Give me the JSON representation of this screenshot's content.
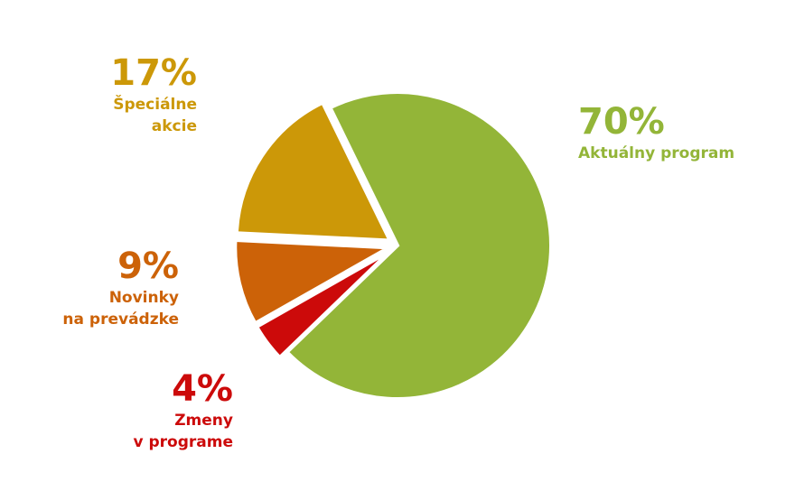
{
  "chart_data": {
    "type": "pie",
    "categories": [
      "Aktuálny program",
      "Zmeny\nv programe",
      "Novinky\nna prevádzke",
      "Špeciálne\nakcie"
    ],
    "values": [
      70,
      4,
      9,
      17
    ],
    "value_labels": [
      "70%",
      "4%",
      "9%",
      "17%"
    ],
    "colors": [
      "#93b538",
      "#cc0a0a",
      "#cc6208",
      "#cc9808"
    ]
  }
}
